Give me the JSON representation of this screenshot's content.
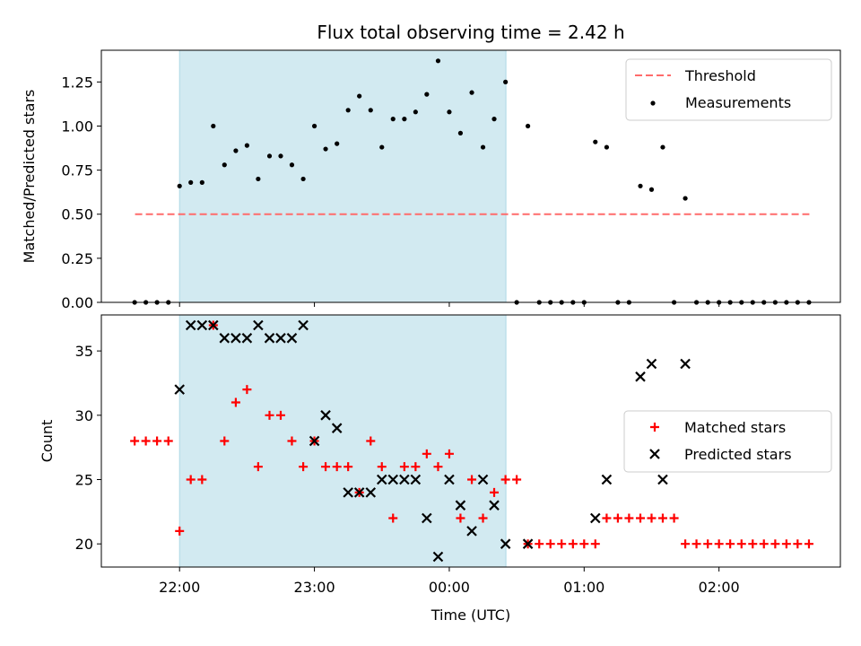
{
  "figure": {
    "title": "Flux total observing time = 2.42 h",
    "xlabel": "Time (UTC)",
    "x_tick_labels": [
      "22:00",
      "23:00",
      "00:00",
      "01:00",
      "02:00"
    ]
  },
  "chart_data": [
    {
      "type": "scatter",
      "title": "Flux total observing time = 2.42 h",
      "ylabel": "Matched/Predicted stars",
      "x_unit": "hours since 22:00 UTC",
      "xlim": [
        -0.58,
        4.9
      ],
      "ylim": [
        0,
        1.43
      ],
      "yticks": [
        0.0,
        0.25,
        0.5,
        0.75,
        1.0,
        1.25
      ],
      "ytick_labels": [
        "0.00",
        "0.25",
        "0.50",
        "0.75",
        "1.00",
        "1.25"
      ],
      "shaded_interval": {
        "x": [
          0.0,
          2.42
        ],
        "color": "#add8e6"
      },
      "legend": {
        "position": "top-right",
        "entries": [
          "Threshold",
          "Measurements"
        ]
      },
      "series": [
        {
          "name": "Threshold",
          "style": "dashed-line",
          "color": "#ff6b6b",
          "x": [
            -0.33,
            4.67
          ],
          "y": [
            0.5,
            0.5
          ]
        },
        {
          "name": "Measurements",
          "style": "points",
          "color": "#000000",
          "x": [
            -0.333,
            -0.25,
            -0.167,
            -0.083,
            0.0,
            0.083,
            0.167,
            0.25,
            0.333,
            0.417,
            0.5,
            0.583,
            0.667,
            0.75,
            0.833,
            0.917,
            1.0,
            1.083,
            1.167,
            1.25,
            1.333,
            1.417,
            1.5,
            1.583,
            1.667,
            1.75,
            1.833,
            1.917,
            2.0,
            2.083,
            2.167,
            2.25,
            2.333,
            2.417,
            2.5,
            2.583,
            2.667,
            2.75,
            2.833,
            2.917,
            3.0,
            3.083,
            3.167,
            3.25,
            3.333,
            3.417,
            3.5,
            3.583,
            3.667,
            3.75,
            3.833,
            3.917,
            4.0,
            4.083,
            4.167,
            4.25,
            4.333,
            4.417,
            4.5,
            4.583,
            4.667
          ],
          "y": [
            0.0,
            0.0,
            0.0,
            0.0,
            0.66,
            0.68,
            0.68,
            1.0,
            0.78,
            0.86,
            0.89,
            0.7,
            0.83,
            0.83,
            0.78,
            0.7,
            1.0,
            0.87,
            0.9,
            1.09,
            1.17,
            1.09,
            0.88,
            1.04,
            1.04,
            1.08,
            1.18,
            1.37,
            1.08,
            0.96,
            1.19,
            0.88,
            1.04,
            1.25,
            0.0,
            1.0,
            0.0,
            0.0,
            0.0,
            0.0,
            0.0,
            0.91,
            0.88,
            0.0,
            0.0,
            0.66,
            0.64,
            0.88,
            0.0,
            0.59,
            0.0,
            0.0,
            0.0,
            0.0,
            0.0,
            0.0,
            0.0,
            0.0,
            0.0,
            0.0,
            0.0
          ]
        }
      ]
    },
    {
      "type": "scatter",
      "xlabel": "Time (UTC)",
      "ylabel": "Count",
      "x_unit": "hours since 22:00 UTC",
      "xlim": [
        -0.58,
        4.9
      ],
      "ylim": [
        18.2,
        37.8
      ],
      "yticks": [
        20,
        25,
        30,
        35
      ],
      "ytick_labels": [
        "20",
        "25",
        "30",
        "35"
      ],
      "xticks": [
        0,
        1,
        2,
        3,
        4
      ],
      "xtick_labels": [
        "22:00",
        "23:00",
        "00:00",
        "01:00",
        "02:00"
      ],
      "shaded_interval": {
        "x": [
          0.0,
          2.42
        ],
        "color": "#add8e6"
      },
      "legend": {
        "position": "center-right",
        "entries": [
          "Matched stars",
          "Predicted stars"
        ]
      },
      "series": [
        {
          "name": "Matched stars",
          "marker": "plus",
          "color": "#ff0000",
          "x": [
            -0.333,
            -0.25,
            -0.167,
            -0.083,
            0.0,
            0.083,
            0.167,
            0.25,
            0.333,
            0.417,
            0.5,
            0.583,
            0.667,
            0.75,
            0.833,
            0.917,
            1.0,
            1.083,
            1.167,
            1.25,
            1.333,
            1.417,
            1.5,
            1.583,
            1.667,
            1.75,
            1.833,
            1.917,
            2.0,
            2.083,
            2.167,
            2.25,
            2.333,
            2.417,
            2.5,
            2.583,
            2.667,
            2.75,
            2.833,
            2.917,
            3.0,
            3.083,
            3.167,
            3.25,
            3.333,
            3.417,
            3.5,
            3.583,
            3.667,
            3.75,
            3.833,
            3.917,
            4.0,
            4.083,
            4.167,
            4.25,
            4.333,
            4.417,
            4.5,
            4.583,
            4.667
          ],
          "y": [
            28,
            28,
            28,
            28,
            21,
            25,
            25,
            37,
            28,
            31,
            32,
            26,
            30,
            30,
            28,
            26,
            28,
            26,
            26,
            26,
            24,
            28,
            26,
            22,
            26,
            26,
            27,
            26,
            27,
            22,
            25,
            22,
            24,
            25,
            25,
            20,
            20,
            20,
            20,
            20,
            20,
            20,
            22,
            22,
            22,
            22,
            22,
            22,
            22,
            20,
            20,
            20,
            20,
            20,
            20,
            20,
            20,
            20,
            20,
            20,
            20
          ]
        },
        {
          "name": "Predicted stars",
          "marker": "x",
          "color": "#000000",
          "x": [
            0.0,
            0.083,
            0.167,
            0.25,
            0.333,
            0.417,
            0.5,
            0.583,
            0.667,
            0.75,
            0.833,
            0.917,
            1.0,
            1.083,
            1.167,
            1.25,
            1.333,
            1.417,
            1.5,
            1.583,
            1.667,
            1.75,
            1.833,
            1.917,
            2.0,
            2.083,
            2.167,
            2.25,
            2.333,
            2.417,
            2.583,
            3.083,
            3.167,
            3.417,
            3.5,
            3.583,
            3.75
          ],
          "y": [
            32,
            37,
            37,
            37,
            36,
            36,
            36,
            37,
            36,
            36,
            36,
            37,
            28,
            30,
            29,
            24,
            24,
            24,
            25,
            25,
            25,
            25,
            22,
            19,
            25,
            23,
            21,
            25,
            23,
            20,
            20,
            22,
            25,
            33,
            34,
            25,
            34
          ]
        }
      ]
    }
  ]
}
